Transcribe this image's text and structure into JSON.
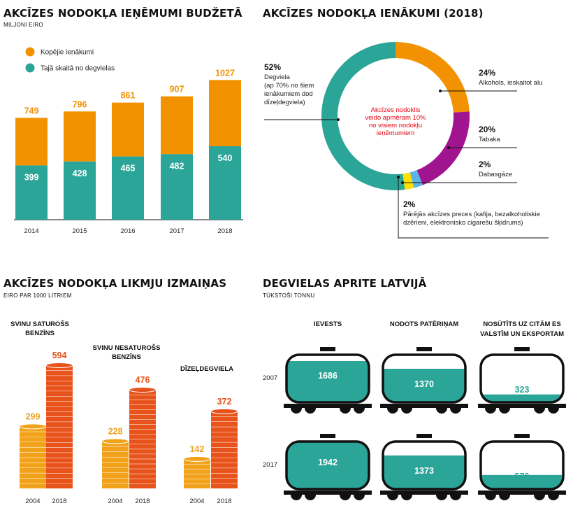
{
  "colors": {
    "orange": "#f39200",
    "teal": "#2aa597",
    "purple": "#a0158f",
    "yellow": "#ffe100",
    "lightblue": "#5bb4e5",
    "red": "#e30613",
    "coinOrange": "#e8531b",
    "coinYellow": "#f2a21a"
  },
  "panel1": {
    "title": "AKCĪZES NODOKĻA IEŅĒMUMI BUDŽETĀ",
    "subtitle": "MILJONI EIRO",
    "legend": [
      {
        "label": "Kopējie ienākumi",
        "color": "orange"
      },
      {
        "label": "Tajā skaitā no degvielas",
        "color": "teal"
      }
    ]
  },
  "panel2": {
    "title": "AKCĪZES NODOKĻA IENĀKUMI (2018)",
    "center_text": [
      "Akcīzes nodoklis",
      "veido apmēram 10%",
      "no visiem nodokļu",
      "ieņēmumiem"
    ],
    "labels": [
      {
        "pct": "52%",
        "lines": [
          "Degviela",
          "(ap 70% no šiem",
          "ienākumiem dod",
          "dīzeļdegviela)"
        ]
      },
      {
        "pct": "24%",
        "lines": [
          "Alkohols, ieskaitot alu"
        ]
      },
      {
        "pct": "20%",
        "lines": [
          "Tabaka"
        ]
      },
      {
        "pct": "2%",
        "lines": [
          "Dabasgāze"
        ]
      },
      {
        "pct": "2%",
        "lines": [
          "Pārējās akcīzes preces (kafija, bezalkoholiskie",
          "dzērieni, elektronisko cigarešu šķidrums)"
        ]
      }
    ]
  },
  "panel3": {
    "title": "AKCĪZES NODOKĻA LIKMJU IZMAIŅAS",
    "subtitle": "EIRO PAR 1000 LITRIEM"
  },
  "panel4": {
    "title": "DEGVIELAS APRITE LATVIJĀ",
    "subtitle": "TŪKSTOŠI TONNU",
    "columns": [
      "IEVESTS",
      "NODOTS PATĒRIŅAM",
      [
        "NOSŪTĪTS UZ CITĀM ES",
        "VALSTĪM UN EKSPORTAM"
      ]
    ],
    "rows": [
      "2007",
      "2017"
    ]
  },
  "chart_data": [
    {
      "type": "bar",
      "title": "AKCĪZES NODOKĻA IEŅĒMUMI BUDŽETĀ",
      "unit": "MILJONI EIRO",
      "categories": [
        "2014",
        "2015",
        "2016",
        "2017",
        "2018"
      ],
      "series": [
        {
          "name": "Kopējie ienākumi",
          "values": [
            749,
            796,
            861,
            907,
            1027
          ]
        },
        {
          "name": "Tajā skaitā no degvielas",
          "values": [
            399,
            428,
            465,
            482,
            540
          ]
        }
      ]
    },
    {
      "type": "pie",
      "title": "AKCĪZES NODOKĻA IENĀKUMI (2018)",
      "categories": [
        "Alkohols, ieskaitot alu",
        "Tabaka",
        "Dabasgāze",
        "Pārējās akcīzes preces",
        "Degviela"
      ],
      "values": [
        24,
        20,
        2,
        2,
        52
      ],
      "slice_colors": [
        "orange",
        "purple",
        "lightblue",
        "yellow",
        "teal"
      ]
    },
    {
      "type": "bar",
      "title": "AKCĪZES NODOKĻA LIKMJU IZMAIŅAS",
      "unit": "EIRO PAR 1000 LITRIEM",
      "groups": [
        {
          "name": [
            "SVINU SATUROŠS",
            "BENZĪNS"
          ],
          "years": [
            "2004",
            "2018"
          ],
          "values": [
            299,
            594
          ]
        },
        {
          "name": [
            "SVINU NESATUROŠS",
            "BENZĪNS"
          ],
          "years": [
            "2004",
            "2018"
          ],
          "values": [
            228,
            476
          ]
        },
        {
          "name": [
            "DĪZEĻDEGVIELA"
          ],
          "years": [
            "2004",
            "2018"
          ],
          "values": [
            142,
            372
          ]
        }
      ]
    },
    {
      "type": "table",
      "title": "DEGVIELAS APRITE LATVIJĀ",
      "unit": "TŪKSTOŠI TONNU",
      "columns": [
        "IEVESTS",
        "NODOTS PATĒRIŅAM",
        "NOSŪTĪTS UZ CITĀM ES VALSTĪM UN EKSPORTAM"
      ],
      "rows": [
        {
          "year": "2007",
          "values": [
            1686,
            1370,
            323
          ]
        },
        {
          "year": "2017",
          "values": [
            1942,
            1373,
            576
          ]
        }
      ]
    }
  ]
}
